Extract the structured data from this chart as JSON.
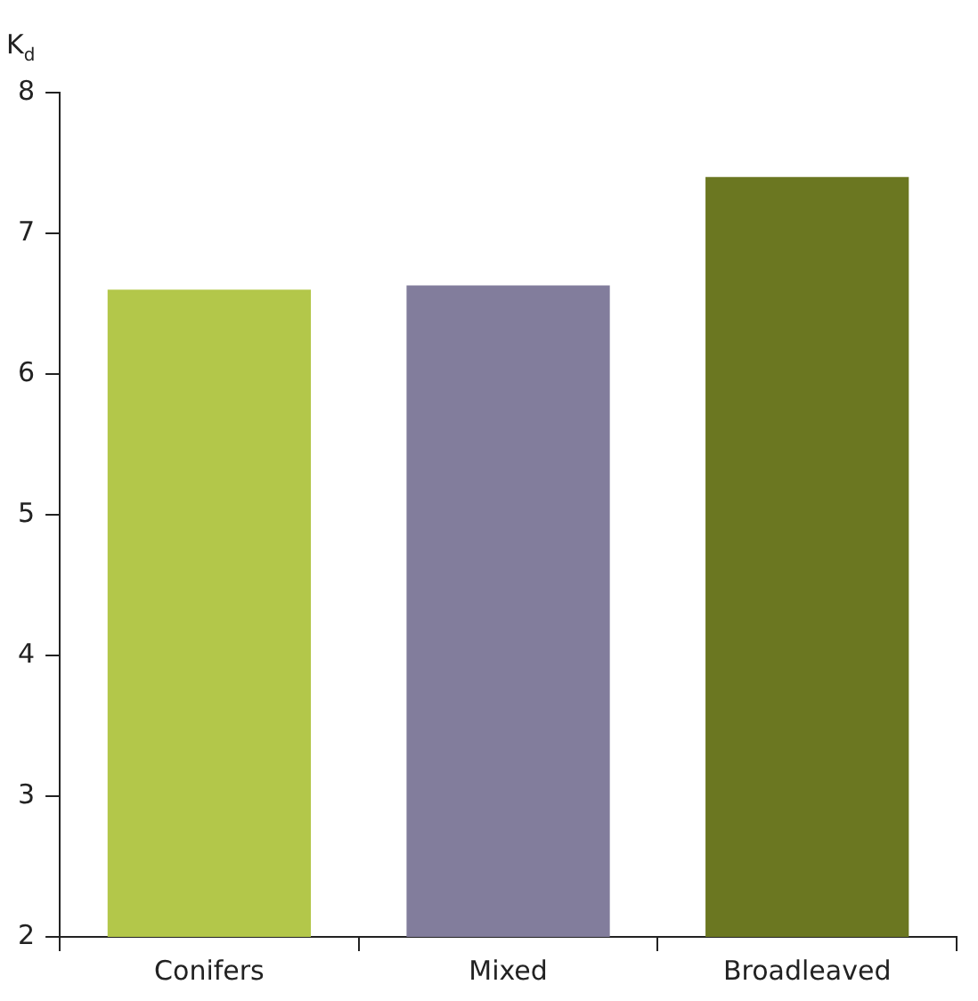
{
  "chart_data": {
    "type": "bar",
    "ylabel": "K$_{d}$",
    "categories": [
      "Conifers",
      "Mixed",
      "Broadleaved"
    ],
    "values": [
      6.6,
      6.63,
      7.4
    ],
    "colors": [
      "#b3c74a",
      "#827d9c",
      "#6b7721"
    ],
    "ylim": [
      2,
      8
    ],
    "yticks": [
      2,
      3,
      4,
      5,
      6,
      7,
      8
    ],
    "grid": false,
    "legend": false
  }
}
